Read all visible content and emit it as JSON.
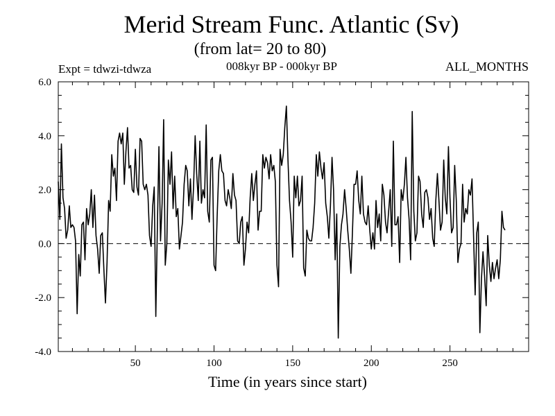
{
  "chart_data": {
    "type": "line",
    "title": "Merid Stream Func. Atlantic (Sv)",
    "subtitle": "(from lat= 20 to 80)",
    "annotations": {
      "left": "Expt = tdwzi-tdwza",
      "center": "008kyr BP - 000kyr BP",
      "right": "ALL_MONTHS"
    },
    "xlabel": "Time (in years since start)",
    "ylabel": "",
    "xlim": [
      1,
      300
    ],
    "ylim": [
      -4.0,
      6.0
    ],
    "x_ticks": [
      50,
      100,
      150,
      200,
      250
    ],
    "x_tick_labels": [
      "50",
      "100",
      "150",
      "200",
      "250"
    ],
    "y_ticks": [
      -4.0,
      -2.0,
      0.0,
      2.0,
      4.0,
      6.0
    ],
    "y_tick_labels": [
      "-4.0",
      "-2.0",
      "0.0",
      "2.0",
      "4.0",
      "6.0"
    ],
    "reference_line": {
      "y": 0.0,
      "style": "dashed"
    },
    "grid": false,
    "line_color": "#000000",
    "x_start": 1,
    "x_step": 1,
    "values": [
      2.3,
      0.9,
      3.7,
      1.7,
      1.3,
      0.2,
      0.5,
      1.4,
      0.6,
      0.7,
      0.6,
      0.1,
      -2.6,
      -0.4,
      -1.2,
      0.7,
      0.8,
      -0.6,
      1.3,
      0.7,
      1.1,
      2.0,
      0.6,
      1.8,
      0.3,
      -0.2,
      -1.1,
      0.3,
      0.4,
      -1.0,
      -2.2,
      -0.7,
      1.6,
      1.2,
      3.3,
      2.5,
      2.8,
      1.6,
      3.8,
      4.1,
      3.7,
      4.1,
      2.2,
      3.4,
      4.3,
      2.8,
      2.9,
      2.0,
      1.9,
      3.5,
      2.1,
      1.8,
      3.9,
      3.8,
      2.2,
      2.0,
      2.2,
      1.8,
      0.3,
      -0.1,
      1.4,
      2.1,
      -2.7,
      0.7,
      3.6,
      0.1,
      1.5,
      4.6,
      -0.8,
      0.0,
      3.1,
      2.2,
      3.4,
      1.3,
      2.5,
      1.0,
      1.3,
      -0.2,
      0.3,
      0.8,
      2.2,
      2.9,
      2.7,
      1.4,
      2.4,
      0.9,
      2.1,
      4.0,
      2.6,
      1.6,
      3.8,
      1.5,
      2.0,
      1.7,
      4.4,
      1.2,
      0.8,
      3.1,
      3.2,
      -0.8,
      -1.0,
      1.0,
      2.7,
      3.3,
      2.7,
      2.6,
      1.6,
      1.4,
      2.0,
      1.7,
      1.3,
      2.6,
      1.8,
      1.6,
      0.1,
      0.0,
      0.8,
      1.0,
      -0.8,
      -0.2,
      0.8,
      0.4,
      1.7,
      2.6,
      1.6,
      2.2,
      2.7,
      0.5,
      1.2,
      1.2,
      3.3,
      2.8,
      3.2,
      3.0,
      2.4,
      3.3,
      2.7,
      2.9,
      2.3,
      -0.8,
      -1.6,
      3.5,
      2.9,
      3.3,
      4.3,
      5.1,
      3.1,
      1.6,
      0.8,
      -0.5,
      2.5,
      1.7,
      2.5,
      1.4,
      1.6,
      2.5,
      -0.9,
      -1.2,
      0.5,
      0.2,
      0.1,
      0.1,
      0.6,
      1.5,
      3.3,
      2.5,
      3.4,
      2.8,
      2.4,
      3.0,
      1.5,
      1.0,
      0.2,
      1.4,
      3.2,
      2.0,
      -0.6,
      1.1,
      -3.5,
      -0.1,
      0.7,
      1.1,
      2.0,
      1.3,
      0.5,
      -0.2,
      -1.1,
      0.4,
      2.2,
      2.2,
      2.7,
      1.6,
      1.1,
      2.5,
      1.1,
      0.8,
      0.7,
      1.4,
      0.5,
      -0.2,
      0.4,
      -0.2,
      1.6,
      0.6,
      1.1,
      0.1,
      2.2,
      1.8,
      0.8,
      0.4,
      1.2,
      2.0,
      -0.1,
      3.8,
      0.7,
      0.7,
      1.0,
      -0.7,
      2.0,
      1.6,
      2.2,
      3.2,
      1.7,
      0.9,
      -0.6,
      4.9,
      1.2,
      0.1,
      0.4,
      2.5,
      2.3,
      1.1,
      0.6,
      1.9,
      2.0,
      1.7,
      0.9,
      1.3,
      0.2,
      -0.1,
      1.6,
      2.6,
      1.6,
      0.5,
      0.8,
      3.1,
      1.7,
      1.1,
      3.6,
      1.7,
      0.4,
      0.6,
      2.9,
      1.6,
      -0.7,
      -0.2,
      0.0,
      2.2,
      0.8,
      1.3,
      1.1,
      2.0,
      1.8,
      2.4,
      0.3,
      -1.9,
      0.4,
      0.8,
      -3.3,
      -1.3,
      -0.3,
      -1.2,
      -2.3,
      0.3,
      -0.8,
      -1.4,
      -0.7,
      -1.3,
      -0.9,
      -0.6,
      -1.3,
      -0.6,
      1.2,
      0.6,
      0.5
    ]
  }
}
